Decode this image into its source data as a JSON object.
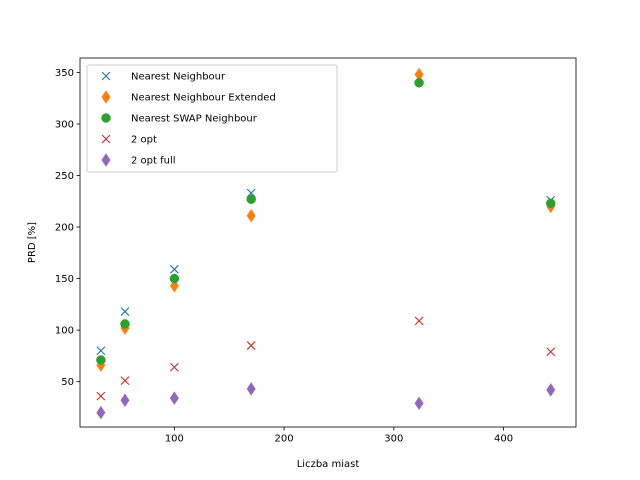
{
  "chart_data": {
    "type": "scatter",
    "xlabel": "Liczba miast",
    "ylabel": "PRD [%]",
    "xlim": [
      14,
      466
    ],
    "ylim": [
      6,
      364
    ],
    "xticks": [
      100,
      200,
      300,
      400
    ],
    "yticks": [
      50,
      100,
      150,
      200,
      250,
      300,
      350
    ],
    "grid": false,
    "legend_position": "top-left",
    "x": [
      33,
      55,
      100,
      170,
      323,
      443
    ],
    "series": [
      {
        "name": "Nearest Neighbour",
        "marker": "x",
        "color": "#1f77b4",
        "values": [
          80,
          118,
          159,
          233,
          345,
          226
        ]
      },
      {
        "name": "Nearest Neighbour Extended",
        "marker": "diamond",
        "color": "#ff7f0e",
        "values": [
          66,
          102,
          143,
          211,
          348,
          220
        ]
      },
      {
        "name": "Nearest SWAP Neighbour",
        "marker": "circle",
        "color": "#2ca02c",
        "values": [
          71,
          106,
          150,
          227,
          340,
          223
        ]
      },
      {
        "name": "2 opt",
        "marker": "x",
        "color": "#d62728",
        "values": [
          36,
          51,
          64,
          85,
          109,
          79
        ]
      },
      {
        "name": "2 opt full",
        "marker": "diamond",
        "color": "#9467bd",
        "values": [
          20,
          32,
          34,
          43,
          29,
          42
        ]
      }
    ]
  }
}
